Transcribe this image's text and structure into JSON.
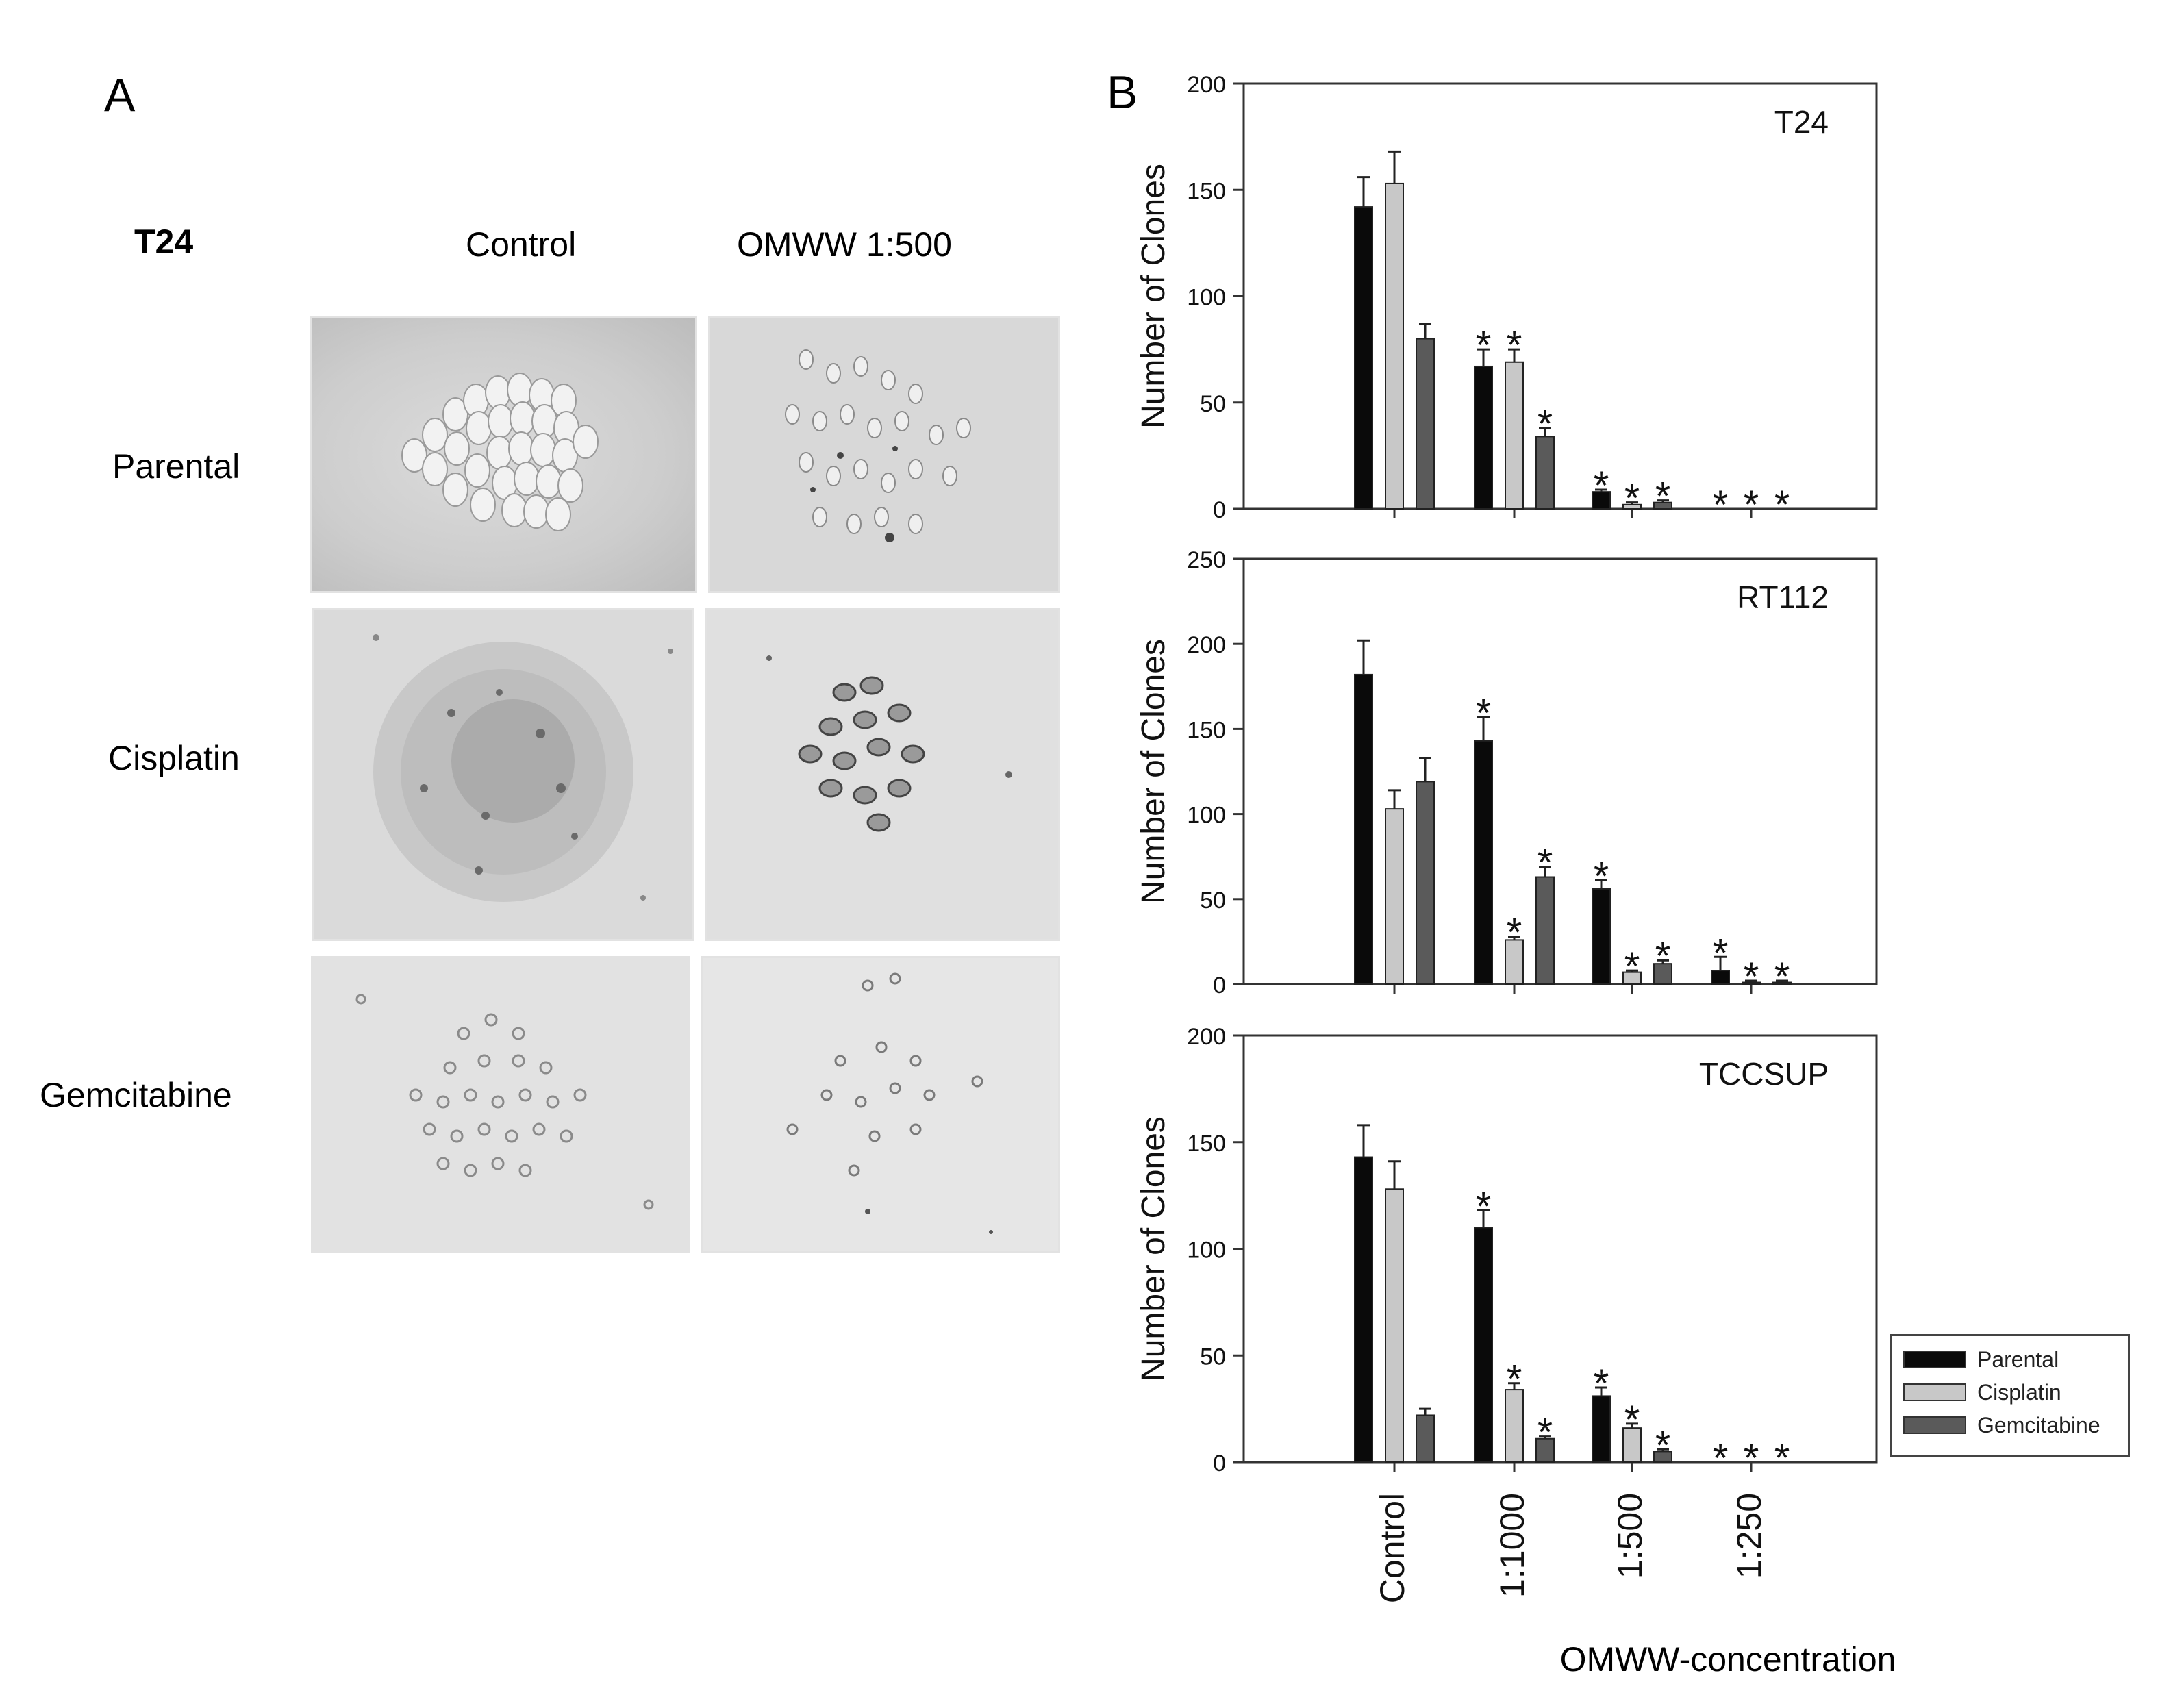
{
  "panel_a": {
    "letter": "A",
    "title": "T24",
    "columns": [
      "Control",
      "OMWW 1:500"
    ],
    "rows": [
      "Parental",
      "Cisplatin",
      "Gemcitabine"
    ]
  },
  "panel_b": {
    "letter": "B",
    "xlabel": "OMWW-concentration",
    "ylabel": "Number of Clones"
  },
  "colors": {
    "Parental": "#0a0a0a",
    "Cisplatin": "#c8c8c8",
    "Gemcitabine": "#5a5a5a"
  },
  "legend": {
    "entries": [
      "Parental",
      "Cisplatin",
      "Gemcitabine"
    ]
  },
  "chart_data": [
    {
      "type": "bar",
      "name": "T24",
      "categories": [
        "Control",
        "1:1000",
        "1:500",
        "1:250"
      ],
      "ylabel": "Number of Clones",
      "ylim": [
        0,
        200
      ],
      "yticks": [
        0,
        50,
        100,
        150,
        200
      ],
      "series": [
        {
          "name": "Parental",
          "values": [
            142,
            67,
            8,
            0
          ],
          "errors": [
            14,
            8,
            1,
            0
          ],
          "significant": [
            false,
            true,
            true,
            true
          ]
        },
        {
          "name": "Cisplatin",
          "values": [
            153,
            69,
            2,
            0
          ],
          "errors": [
            15,
            6,
            1,
            0
          ],
          "significant": [
            false,
            true,
            true,
            true
          ]
        },
        {
          "name": "Gemcitabine",
          "values": [
            80,
            34,
            3,
            0
          ],
          "errors": [
            7,
            4,
            1,
            0
          ],
          "significant": [
            false,
            true,
            true,
            true
          ]
        }
      ]
    },
    {
      "type": "bar",
      "name": "RT112",
      "categories": [
        "Control",
        "1:1000",
        "1:500",
        "1:250"
      ],
      "ylabel": "Number of Clones",
      "ylim": [
        0,
        250
      ],
      "yticks": [
        0,
        50,
        100,
        150,
        200,
        250
      ],
      "series": [
        {
          "name": "Parental",
          "values": [
            182,
            143,
            56,
            8
          ],
          "errors": [
            20,
            14,
            5,
            8
          ],
          "significant": [
            false,
            true,
            true,
            true
          ]
        },
        {
          "name": "Cisplatin",
          "values": [
            103,
            26,
            7,
            1
          ],
          "errors": [
            11,
            2,
            1,
            1
          ],
          "significant": [
            false,
            true,
            true,
            true
          ]
        },
        {
          "name": "Gemcitabine",
          "values": [
            119,
            63,
            12,
            1
          ],
          "errors": [
            14,
            6,
            2,
            1
          ],
          "significant": [
            false,
            true,
            true,
            true
          ]
        }
      ]
    },
    {
      "type": "bar",
      "name": "TCCSUP",
      "categories": [
        "Control",
        "1:1000",
        "1:500",
        "1:250"
      ],
      "ylabel": "Number of Clones",
      "ylim": [
        0,
        200
      ],
      "yticks": [
        0,
        50,
        100,
        150,
        200
      ],
      "series": [
        {
          "name": "Parental",
          "values": [
            143,
            110,
            31,
            0
          ],
          "errors": [
            15,
            8,
            4,
            0
          ],
          "significant": [
            false,
            true,
            true,
            true
          ]
        },
        {
          "name": "Cisplatin",
          "values": [
            128,
            34,
            16,
            0
          ],
          "errors": [
            13,
            3,
            2,
            0
          ],
          "significant": [
            false,
            true,
            true,
            true
          ]
        },
        {
          "name": "Gemcitabine",
          "values": [
            22,
            11,
            5,
            0
          ],
          "errors": [
            3,
            1,
            1,
            0
          ],
          "significant": [
            false,
            true,
            true,
            true
          ]
        }
      ]
    }
  ]
}
